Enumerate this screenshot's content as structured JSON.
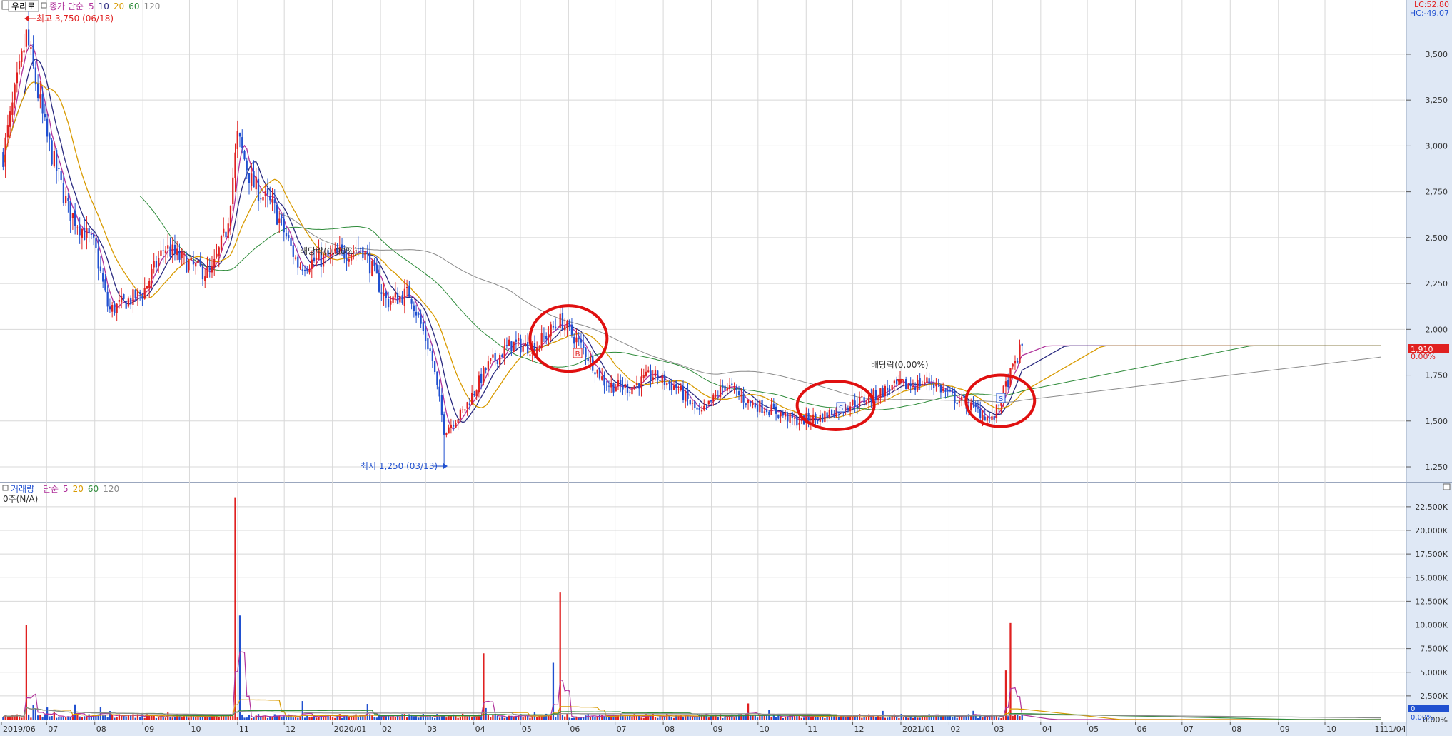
{
  "price_header": {
    "stock_name": "우리로",
    "title": "종가 단순",
    "ma_periods": [
      "5",
      "10",
      "20",
      "60",
      "120"
    ],
    "ma_colors": [
      "#b0329b",
      "#2a2a80",
      "#d89a00",
      "#2e8b3a",
      "#8a8a8a"
    ]
  },
  "price_annotations": {
    "high_label": "최고 3,750 (06/18)",
    "low_label": "최저 1,250 (03/13)",
    "dividend_label_1": "배당락(0,00%)",
    "dividend_label_2": "배당락(0,00%)",
    "buy_marker": "B",
    "sell_marker_1": "S",
    "sell_marker_2": "S"
  },
  "corner_info": {
    "lc": "LC:52.80",
    "hc": "HC:-49.07"
  },
  "price_axis": {
    "ticks": [
      "3,500",
      "3,250",
      "3,000",
      "2,750",
      "2,500",
      "2,250",
      "2,000",
      "1,750",
      "1,500",
      "1,250"
    ],
    "current_price": "1,910",
    "current_change": "0.00%"
  },
  "volume_header": {
    "title": "거래량",
    "ma_title": "단순",
    "ma_periods": [
      "5",
      "20",
      "60",
      "120"
    ],
    "ma_colors": [
      "#b0329b",
      "#d89a00",
      "#2e8b3a",
      "#8a8a8a"
    ],
    "unit_label": "0주(N/A)"
  },
  "volume_axis": {
    "ticks": [
      "22,500K",
      "20,000K",
      "17,500K",
      "15,000K",
      "12,500K",
      "10,000K",
      "7,500K",
      "5,000K",
      "2,500K",
      "0.00%"
    ],
    "current_volume": "0",
    "current_pct": "0.00%"
  },
  "time_axis": {
    "labels": [
      "2019/06",
      "07",
      "08",
      "09",
      "10",
      "11",
      "12",
      "2020/01",
      "02",
      "03",
      "04",
      "05",
      "06",
      "07",
      "08",
      "09",
      "10",
      "11",
      "12",
      "2021/01",
      "02",
      "03",
      "04",
      "05",
      "06",
      "07",
      "08",
      "09",
      "10",
      "11",
      "11/04"
    ]
  },
  "colors": {
    "up": "#e02020",
    "down": "#2050d0",
    "circle": "#e01010",
    "axis_bg": "#dfe8f5"
  },
  "chart_data": {
    "type": "candlestick",
    "price_range": [
      1180,
      3780
    ],
    "volume_range_k": [
      0,
      24000
    ],
    "trend_points": [
      {
        "date": "2019/06/03",
        "price": 2950
      },
      {
        "date": "2019/06/18",
        "price": 3600
      },
      {
        "date": "2019/07/01",
        "price": 3050
      },
      {
        "date": "2019/07/15",
        "price": 2650
      },
      {
        "date": "2019/08/01",
        "price": 2450
      },
      {
        "date": "2019/08/10",
        "price": 2100
      },
      {
        "date": "2019/09/01",
        "price": 2200
      },
      {
        "date": "2019/09/15",
        "price": 2450
      },
      {
        "date": "2019/10/01",
        "price": 2350
      },
      {
        "date": "2019/10/15",
        "price": 2300
      },
      {
        "date": "2019/10/25",
        "price": 2550
      },
      {
        "date": "2019/11/01",
        "price": 3050
      },
      {
        "date": "2019/11/10",
        "price": 2800
      },
      {
        "date": "2019/11/25",
        "price": 2650
      },
      {
        "date": "2019/12/10",
        "price": 2350
      },
      {
        "date": "2020/01/02",
        "price": 2400
      },
      {
        "date": "2020/01/20",
        "price": 2450
      },
      {
        "date": "2020/02/05",
        "price": 2150
      },
      {
        "date": "2020/02/20",
        "price": 2200
      },
      {
        "date": "2020/03/05",
        "price": 1850
      },
      {
        "date": "2020/03/13",
        "price": 1450
      },
      {
        "date": "2020/03/25",
        "price": 1550
      },
      {
        "date": "2020/04/10",
        "price": 1800
      },
      {
        "date": "2020/04/25",
        "price": 1920
      },
      {
        "date": "2020/05/10",
        "price": 1900
      },
      {
        "date": "2020/05/27",
        "price": 2050
      },
      {
        "date": "2020/06/10",
        "price": 1900
      },
      {
        "date": "2020/06/25",
        "price": 1700
      },
      {
        "date": "2020/07/10",
        "price": 1680
      },
      {
        "date": "2020/07/25",
        "price": 1750
      },
      {
        "date": "2020/08/10",
        "price": 1680
      },
      {
        "date": "2020/08/25",
        "price": 1530
      },
      {
        "date": "2020/09/10",
        "price": 1700
      },
      {
        "date": "2020/09/25",
        "price": 1600
      },
      {
        "date": "2020/10/10",
        "price": 1560
      },
      {
        "date": "2020/10/25",
        "price": 1500
      },
      {
        "date": "2020/11/10",
        "price": 1520
      },
      {
        "date": "2020/11/25",
        "price": 1580
      },
      {
        "date": "2020/12/10",
        "price": 1620
      },
      {
        "date": "2020/12/25",
        "price": 1680
      },
      {
        "date": "2021/01/10",
        "price": 1700
      },
      {
        "date": "2021/01/20",
        "price": 1720
      },
      {
        "date": "2021/02/01",
        "price": 1640
      },
      {
        "date": "2021/02/15",
        "price": 1580
      },
      {
        "date": "2021/03/01",
        "price": 1500
      },
      {
        "date": "2021/03/10",
        "price": 1700
      },
      {
        "date": "2021/03/20",
        "price": 1910
      }
    ],
    "volume_spikes_k": [
      {
        "date": "2019/06/18",
        "value": 10000
      },
      {
        "date": "2019/10/31",
        "value": 23500
      },
      {
        "date": "2019/11/02",
        "value": 11000
      },
      {
        "date": "2020/04/08",
        "value": 7000
      },
      {
        "date": "2020/05/22",
        "value": 6000
      },
      {
        "date": "2020/05/27",
        "value": 13500
      },
      {
        "date": "2021/03/09",
        "value": 5200
      },
      {
        "date": "2021/03/12",
        "value": 10200
      }
    ]
  }
}
